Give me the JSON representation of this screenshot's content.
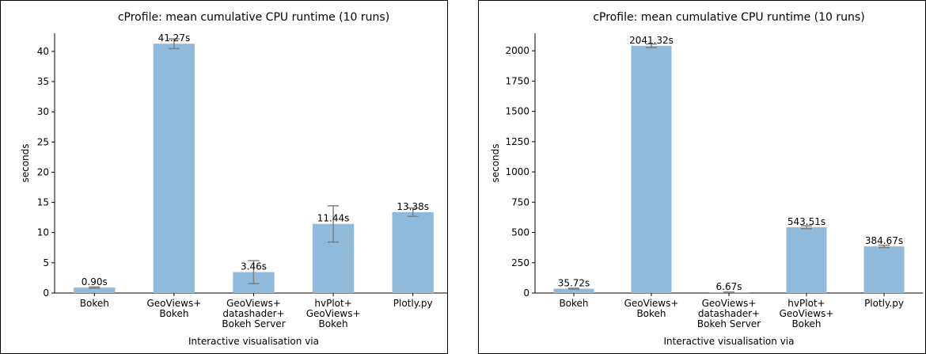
{
  "chart_data": [
    {
      "type": "bar",
      "title": "cProfile: mean cumulative CPU runtime (10 runs)",
      "xlabel": "Interactive visualisation via",
      "ylabel": "seconds",
      "categories": [
        [
          "Bokeh"
        ],
        [
          "GeoViews+",
          "Bokeh"
        ],
        [
          "GeoViews+",
          "datashader+",
          "Bokeh Server"
        ],
        [
          "hvPlot+",
          "GeoViews+",
          "Bokeh"
        ],
        [
          "Plotly.py"
        ]
      ],
      "values": [
        0.9,
        41.27,
        3.46,
        11.44,
        13.38
      ],
      "errors": [
        0.1,
        0.8,
        1.9,
        3.0,
        0.7
      ],
      "value_labels": [
        "0.90s",
        "41.27s",
        "3.46s",
        "11.44s",
        "13.38s"
      ],
      "ylim": [
        0,
        43
      ],
      "yticks": [
        0,
        5,
        10,
        15,
        20,
        25,
        30,
        35,
        40
      ],
      "bar_color": "#8fbadb",
      "error_color": "#808080",
      "grid": false,
      "legend": false
    },
    {
      "type": "bar",
      "title": "cProfile: mean cumulative CPU runtime (10 runs)",
      "xlabel": "Interactive visualisation via",
      "ylabel": "seconds",
      "categories": [
        [
          "Bokeh"
        ],
        [
          "GeoViews+",
          "Bokeh"
        ],
        [
          "GeoViews+",
          "datashader+",
          "Bokeh Server"
        ],
        [
          "hvPlot+",
          "GeoViews+",
          "Bokeh"
        ],
        [
          "Plotly.py"
        ]
      ],
      "values": [
        35.72,
        2041.32,
        6.67,
        543.51,
        384.67
      ],
      "errors": [
        4,
        15,
        1,
        12,
        10
      ],
      "value_labels": [
        "35.72s",
        "2041.32s",
        "6.67s",
        "543.51s",
        "384.67s"
      ],
      "ylim": [
        0,
        2145
      ],
      "yticks": [
        0,
        250,
        500,
        750,
        1000,
        1250,
        1500,
        1750,
        2000
      ],
      "bar_color": "#8fbadb",
      "error_color": "#808080",
      "grid": false,
      "legend": false
    }
  ]
}
